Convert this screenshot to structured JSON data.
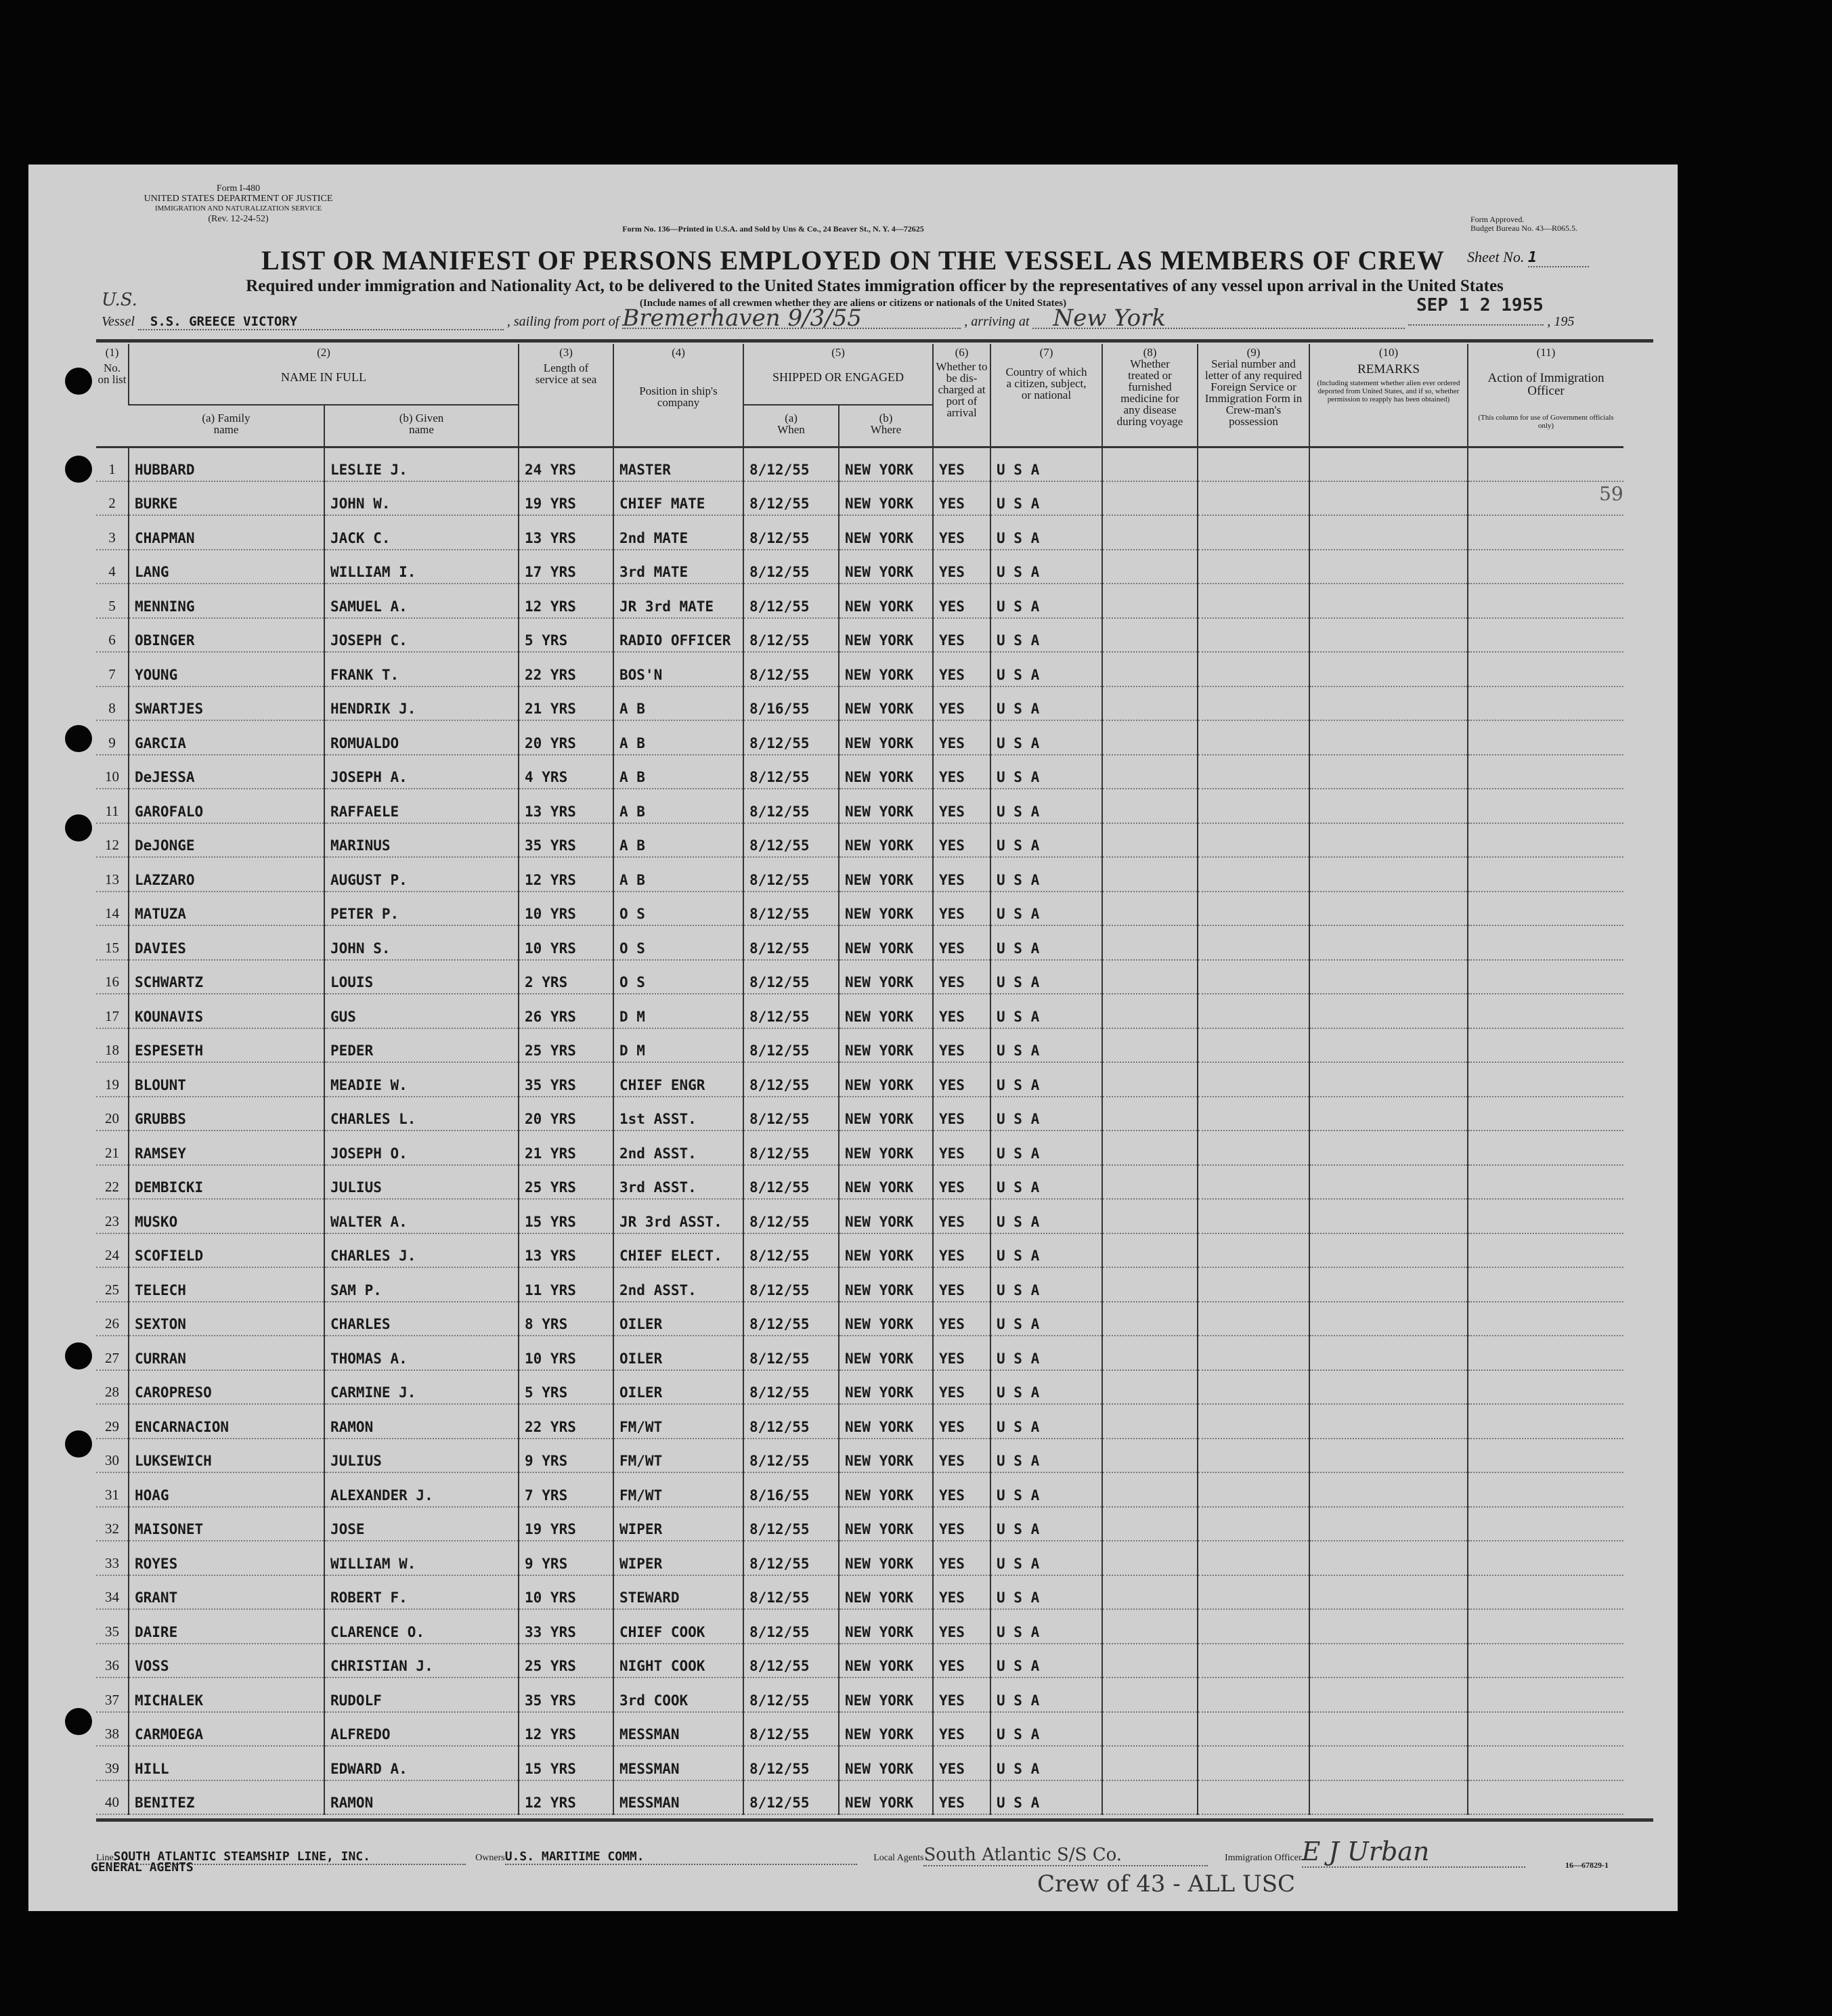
{
  "form": {
    "form_id": "Form I-480",
    "dept": "UNITED STATES DEPARTMENT OF JUSTICE",
    "service": "IMMIGRATION AND NATURALIZATION SERVICE",
    "rev": "(Rev. 12-24-52)",
    "printer": "Form No. 136—Printed in U.S.A. and Sold by Uns & Co., 24 Beaver St., N. Y. 4—72625",
    "approved": "Form Approved.",
    "budget": "Budget Bureau No. 43—R065.5.",
    "sheet_label": "Sheet No.",
    "sheet_no": "1"
  },
  "title": "LIST OR MANIFEST OF PERSONS EMPLOYED ON THE VESSEL AS MEMBERS OF CREW",
  "subtitle": "Required under immigration and Nationality Act, to be delivered to the United States immigration officer by the representatives of any vessel upon arrival in the United States",
  "include_note": "(Include names of all crewmen whether they are aliens or citizens or nationals of the United States)",
  "stamp_date": "SEP 1 2 1955",
  "vessel": {
    "label": "Vessel",
    "prefix": "U.S.",
    "name": "S.S. GREECE VICTORY",
    "sailing_label": ", sailing from port of",
    "sailing_port": "Bremerhaven 9/3/55",
    "arriving_label": ", arriving at",
    "arriving_port": "New York",
    "year_label": ", 195"
  },
  "margin_note": "59",
  "columns": [
    {
      "num": "(1)",
      "label": "No. on list"
    },
    {
      "num": "(2)",
      "label": "NAME IN FULL",
      "sub": "(a) Family name"
    },
    {
      "sub": "(b) Given name"
    },
    {
      "num": "(3)",
      "label": "Length of service at sea"
    },
    {
      "num": "(4)",
      "label": "Position in ship's company"
    },
    {
      "num": "(5)",
      "label": "SHIPPED OR ENGAGED",
      "sub": "(a) When"
    },
    {
      "sub": "(b) Where"
    },
    {
      "num": "(6)",
      "label": "Whether to be dis-charged at port of arrival"
    },
    {
      "num": "(7)",
      "label": "Country of which a citizen, subject, or national"
    },
    {
      "num": "(8)",
      "label": "Whether treated or furnished medicine for any disease during voyage"
    },
    {
      "num": "(9)",
      "label": "Serial number and letter of any required Foreign Service or Immigration Form in Crew-man's possession"
    },
    {
      "num": "(10)",
      "label": "REMARKS",
      "sub": "(Including statement whether alien ever ordered deported from United States, and if so, whether permission to reapply has been obtained)"
    },
    {
      "num": "(11)",
      "label": "Action of Immigration Officer",
      "sub": "(This column for use of Government officials only)"
    }
  ],
  "rows": [
    [
      "HUBBARD",
      "LESLIE J.",
      "24 YRS",
      "MASTER",
      "8/12/55",
      "NEW YORK",
      "YES",
      "U S A"
    ],
    [
      "BURKE",
      "JOHN W.",
      "19 YRS",
      "CHIEF MATE",
      "8/12/55",
      "NEW YORK",
      "YES",
      "U S A"
    ],
    [
      "CHAPMAN",
      "JACK C.",
      "13 YRS",
      "2nd MATE",
      "8/12/55",
      "NEW YORK",
      "YES",
      "U S A"
    ],
    [
      "LANG",
      "WILLIAM I.",
      "17 YRS",
      "3rd MATE",
      "8/12/55",
      "NEW YORK",
      "YES",
      "U S A"
    ],
    [
      "MENNING",
      "SAMUEL A.",
      "12 YRS",
      "JR 3rd MATE",
      "8/12/55",
      "NEW YORK",
      "YES",
      "U S A"
    ],
    [
      "OBINGER",
      "JOSEPH C.",
      "5 YRS",
      "RADIO OFFICER",
      "8/12/55",
      "NEW YORK",
      "YES",
      "U S A"
    ],
    [
      "YOUNG",
      "FRANK T.",
      "22 YRS",
      "BOS'N",
      "8/12/55",
      "NEW YORK",
      "YES",
      "U S A"
    ],
    [
      "SWARTJES",
      "HENDRIK J.",
      "21 YRS",
      "A B",
      "8/16/55",
      "NEW YORK",
      "YES",
      "U S A"
    ],
    [
      "GARCIA",
      "ROMUALDO",
      "20 YRS",
      "A B",
      "8/12/55",
      "NEW YORK",
      "YES",
      "U S A"
    ],
    [
      "DeJESSA",
      "JOSEPH A.",
      "4 YRS",
      "A B",
      "8/12/55",
      "NEW YORK",
      "YES",
      "U S A"
    ],
    [
      "GAROFALO",
      "RAFFAELE",
      "13 YRS",
      "A B",
      "8/12/55",
      "NEW YORK",
      "YES",
      "U S A"
    ],
    [
      "DeJONGE",
      "MARINUS",
      "35 YRS",
      "A B",
      "8/12/55",
      "NEW YORK",
      "YES",
      "U S A"
    ],
    [
      "LAZZARO",
      "AUGUST P.",
      "12 YRS",
      "A B",
      "8/12/55",
      "NEW YORK",
      "YES",
      "U S A"
    ],
    [
      "MATUZA",
      "PETER P.",
      "10 YRS",
      "O S",
      "8/12/55",
      "NEW YORK",
      "YES",
      "U S A"
    ],
    [
      "DAVIES",
      "JOHN S.",
      "10 YRS",
      "O S",
      "8/12/55",
      "NEW YORK",
      "YES",
      "U S A"
    ],
    [
      "SCHWARTZ",
      "LOUIS",
      "2 YRS",
      "O S",
      "8/12/55",
      "NEW YORK",
      "YES",
      "U S A"
    ],
    [
      "KOUNAVIS",
      "GUS",
      "26 YRS",
      "D M",
      "8/12/55",
      "NEW YORK",
      "YES",
      "U S A"
    ],
    [
      "ESPESETH",
      "PEDER",
      "25 YRS",
      "D M",
      "8/12/55",
      "NEW YORK",
      "YES",
      "U S A"
    ],
    [
      "BLOUNT",
      "MEADIE W.",
      "35 YRS",
      "CHIEF ENGR",
      "8/12/55",
      "NEW YORK",
      "YES",
      "U S A"
    ],
    [
      "GRUBBS",
      "CHARLES L.",
      "20 YRS",
      "1st ASST.",
      "8/12/55",
      "NEW YORK",
      "YES",
      "U S A"
    ],
    [
      "RAMSEY",
      "JOSEPH O.",
      "21 YRS",
      "2nd ASST.",
      "8/12/55",
      "NEW YORK",
      "YES",
      "U S A"
    ],
    [
      "DEMBICKI",
      "JULIUS",
      "25 YRS",
      "3rd ASST.",
      "8/12/55",
      "NEW YORK",
      "YES",
      "U S A"
    ],
    [
      "MUSKO",
      "WALTER A.",
      "15 YRS",
      "JR 3rd ASST.",
      "8/12/55",
      "NEW YORK",
      "YES",
      "U S A"
    ],
    [
      "SCOFIELD",
      "CHARLES J.",
      "13 YRS",
      "CHIEF ELECT.",
      "8/12/55",
      "NEW YORK",
      "YES",
      "U S A"
    ],
    [
      "TELECH",
      "SAM P.",
      "11 YRS",
      "2nd ASST.",
      "8/12/55",
      "NEW YORK",
      "YES",
      "U S A"
    ],
    [
      "SEXTON",
      "CHARLES",
      "8 YRS",
      "OILER",
      "8/12/55",
      "NEW YORK",
      "YES",
      "U S A"
    ],
    [
      "CURRAN",
      "THOMAS A.",
      "10 YRS",
      "OILER",
      "8/12/55",
      "NEW YORK",
      "YES",
      "U S A"
    ],
    [
      "CAROPRESO",
      "CARMINE J.",
      "5 YRS",
      "OILER",
      "8/12/55",
      "NEW YORK",
      "YES",
      "U S A"
    ],
    [
      "ENCARNACION",
      "RAMON",
      "22 YRS",
      "FM/WT",
      "8/12/55",
      "NEW YORK",
      "YES",
      "U S A"
    ],
    [
      "LUKSEWICH",
      "JULIUS",
      "9 YRS",
      "FM/WT",
      "8/12/55",
      "NEW YORK",
      "YES",
      "U S A"
    ],
    [
      "HOAG",
      "ALEXANDER J.",
      "7 YRS",
      "FM/WT",
      "8/16/55",
      "NEW YORK",
      "YES",
      "U S A"
    ],
    [
      "MAISONET",
      "JOSE",
      "19 YRS",
      "WIPER",
      "8/12/55",
      "NEW YORK",
      "YES",
      "U S A"
    ],
    [
      "ROYES",
      "WILLIAM W.",
      "9 YRS",
      "WIPER",
      "8/12/55",
      "NEW YORK",
      "YES",
      "U S A"
    ],
    [
      "GRANT",
      "ROBERT F.",
      "10 YRS",
      "STEWARD",
      "8/12/55",
      "NEW YORK",
      "YES",
      "U S A"
    ],
    [
      "DAIRE",
      "CLARENCE O.",
      "33 YRS",
      "CHIEF COOK",
      "8/12/55",
      "NEW YORK",
      "YES",
      "U S A"
    ],
    [
      "VOSS",
      "CHRISTIAN J.",
      "25 YRS",
      "NIGHT COOK",
      "8/12/55",
      "NEW YORK",
      "YES",
      "U S A"
    ],
    [
      "MICHALEK",
      "RUDOLF",
      "35 YRS",
      "3rd COOK",
      "8/12/55",
      "NEW YORK",
      "YES",
      "U S A"
    ],
    [
      "CARMOEGA",
      "ALFREDO",
      "12 YRS",
      "MESSMAN",
      "8/12/55",
      "NEW YORK",
      "YES",
      "U S A"
    ],
    [
      "HILL",
      "EDWARD A.",
      "15 YRS",
      "MESSMAN",
      "8/12/55",
      "NEW YORK",
      "YES",
      "U S A"
    ],
    [
      "BENITEZ",
      "RAMON",
      "12 YRS",
      "MESSMAN",
      "8/12/55",
      "NEW YORK",
      "YES",
      "U S A"
    ]
  ],
  "footer": {
    "line_label": "Line",
    "line": "SOUTH ATLANTIC STEAMSHIP LINE, INC.",
    "general_agents": "GENERAL AGENTS",
    "owners_label": "Owners",
    "owners": "U.S. MARITIME COMM.",
    "agents_label": "Local Agents",
    "agents": "South Atlantic S/S Co.",
    "officer_label": "Immigration Officer",
    "officer_signature": "E J Urban",
    "form_code": "16—67829-1",
    "crew_note": "Crew of 43 - ALL USC"
  }
}
